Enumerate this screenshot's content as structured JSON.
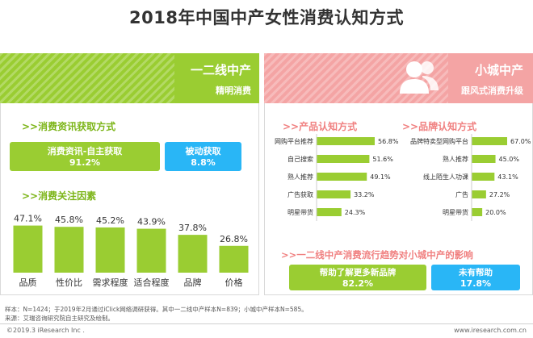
{
  "title": "2018年中国中产女性消费认知方式",
  "left": {
    "header_title": "一二线中产",
    "header_sub": "精明消费",
    "info_title": ">>消费资讯获取方式",
    "info_bars": [
      {
        "label": "消费资讯-自主获取",
        "value": "91.2%"
      },
      {
        "label": "被动获取",
        "value": "8.8%"
      }
    ],
    "focus_title": ">>消费关注因素"
  },
  "right": {
    "header_title": "小城中产",
    "header_sub": "跟风式消费升级",
    "product_title": ">>产品认知方式",
    "brand_title": ">>品牌认知方式",
    "impact_title": ">>一二线中产消费流行趋势对小城中产的影响",
    "impact_bars": [
      {
        "label": "帮助了解更多新品牌",
        "value": "82.2%"
      },
      {
        "label": "未有帮助",
        "value": "17.8%"
      }
    ]
  },
  "colors": {
    "green": "#9acd32",
    "blue": "#29b6f6",
    "pink": "#f4a4a4"
  },
  "chart_data": [
    {
      "type": "bar",
      "title": "消费关注因素",
      "categories": [
        "品质",
        "性价比",
        "需求程度",
        "适合程度",
        "品牌",
        "价格"
      ],
      "values": [
        47.1,
        45.8,
        45.2,
        43.9,
        37.8,
        26.8
      ],
      "labels": [
        "47.1%",
        "45.8%",
        "45.2%",
        "43.9%",
        "37.8%",
        "26.8%"
      ],
      "ylim": [
        0,
        50
      ]
    },
    {
      "type": "bar",
      "title": "产品认知方式",
      "orientation": "horizontal",
      "categories": [
        "网购平台推荐",
        "自己搜索",
        "熟人推荐",
        "广告获取",
        "明星带货"
      ],
      "values": [
        56.8,
        51.6,
        49.1,
        33.2,
        24.3
      ],
      "labels": [
        "56.8%",
        "51.6%",
        "49.1%",
        "33.2%",
        "24.3%"
      ]
    },
    {
      "type": "bar",
      "title": "品牌认知方式",
      "orientation": "horizontal",
      "categories": [
        "品牌特卖型网购平台",
        "熟人推荐",
        "线上陌生人功课",
        "广告",
        "明星带货"
      ],
      "values": [
        67.0,
        45.0,
        43.1,
        27.2,
        20.0
      ],
      "labels": [
        "67.0%",
        "45.0%",
        "43.1%",
        "27.2%",
        "20.0%"
      ]
    }
  ],
  "footnotes": [
    "样本：N=1424；于2019年2月通过iClick网络调研获得。其中一二线中产样本N=839；小城中产样本N=585。",
    "来源：艾瑞咨询研究院自主研究及绘制。"
  ],
  "copyright": "©2019.3 iResearch Inc .",
  "site": "www.iresearch.com.cn"
}
